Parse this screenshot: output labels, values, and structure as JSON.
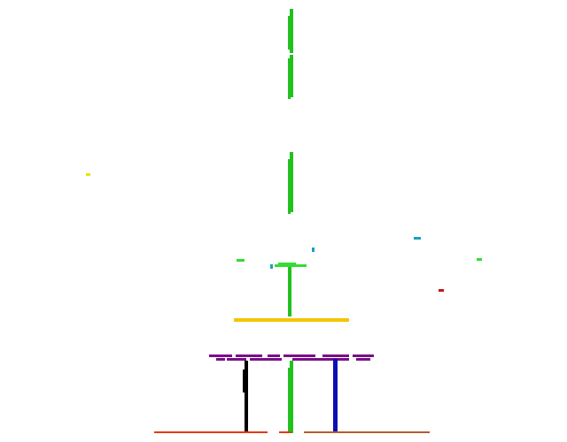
{
  "scene": {
    "background": "#ffffff",
    "colors": {
      "central_pole": "#22c11f",
      "platform": "#f5c400",
      "beam": "#7a0f8a",
      "left_pillar": "#000000",
      "right_pillar": "#0b0fb3",
      "ground_left": "#e03a12",
      "ground_right": "#b0612c",
      "bright_green": "#33dd33",
      "yellow": "#e8e800",
      "teal": "#1a9fc0",
      "red": "#c81414"
    }
  }
}
